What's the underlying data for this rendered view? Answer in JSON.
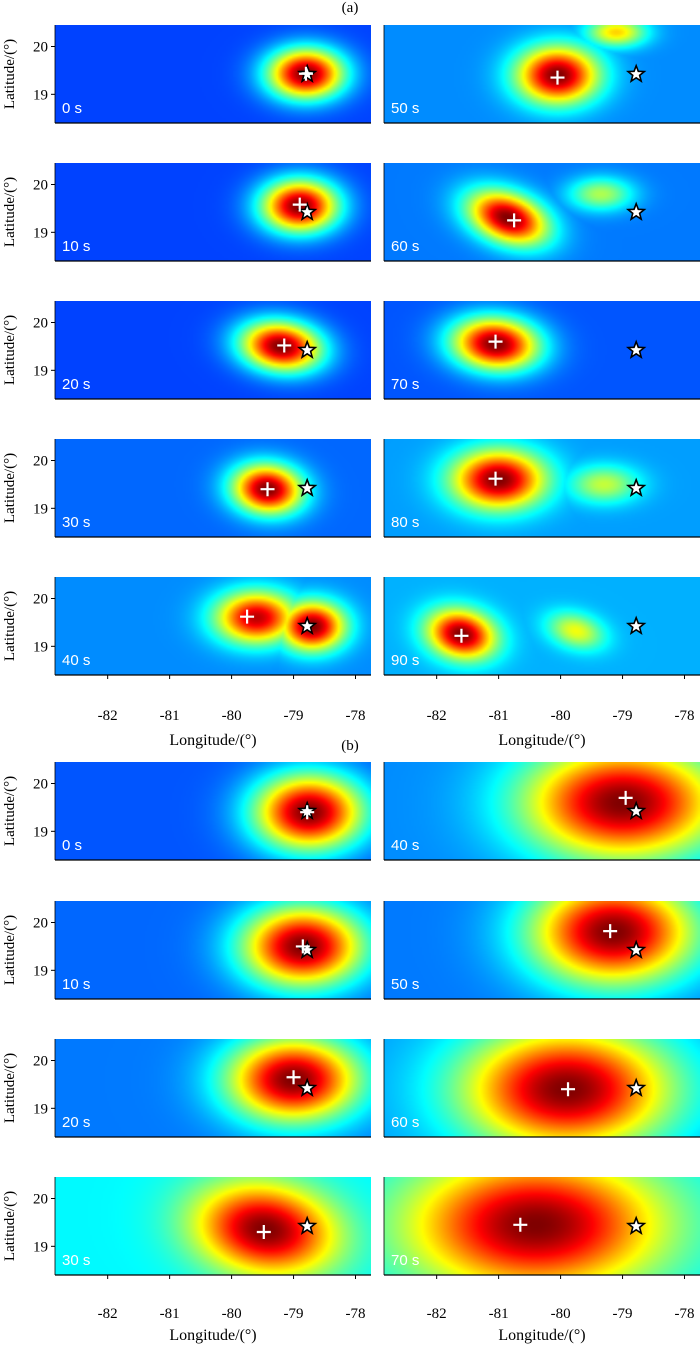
{
  "chart_data": {
    "type": "heatmap",
    "colormap": "jet",
    "xlabel": "Longitude/(°)",
    "ylabel": "Latitude/(°)",
    "xlim": [
      -82.85,
      -77.75
    ],
    "ylim": [
      18.4,
      20.45
    ],
    "xticks": [
      -82,
      -81,
      -80,
      -79,
      -78
    ],
    "yticks": [
      19,
      20
    ],
    "epicenter_star": {
      "lon": -78.78,
      "lat": 19.42
    },
    "panels": [
      {
        "label": "(a)",
        "rows": 5,
        "columns": [
          [
            {
              "time": "0 s",
              "peak": {
                "lon": -78.8,
                "lat": 19.43
              },
              "blobs": [
                {
                  "lon": -78.8,
                  "lat": 19.43,
                  "rx": 0.7,
                  "ry": 0.6,
                  "rot": 0,
                  "amp": 1.0
                }
              ],
              "bg": 0.1
            },
            {
              "time": "10 s",
              "peak": {
                "lon": -78.9,
                "lat": 19.58
              },
              "blobs": [
                {
                  "lon": -78.9,
                  "lat": 19.55,
                  "rx": 0.7,
                  "ry": 0.62,
                  "rot": 0,
                  "amp": 1.0
                }
              ],
              "bg": 0.1
            },
            {
              "time": "20 s",
              "peak": {
                "lon": -79.15,
                "lat": 19.52
              },
              "blobs": [
                {
                  "lon": -79.2,
                  "lat": 19.5,
                  "rx": 0.75,
                  "ry": 0.58,
                  "rot": -15,
                  "amp": 1.0
                }
              ],
              "bg": 0.1
            },
            {
              "time": "30 s",
              "peak": {
                "lon": -79.42,
                "lat": 19.4
              },
              "blobs": [
                {
                  "lon": -79.42,
                  "lat": 19.4,
                  "rx": 0.65,
                  "ry": 0.58,
                  "rot": -20,
                  "amp": 1.0
                }
              ],
              "bg": 0.14
            },
            {
              "time": "40 s",
              "peak": {
                "lon": -79.75,
                "lat": 19.62
              },
              "blobs": [
                {
                  "lon": -79.6,
                  "lat": 19.6,
                  "rx": 0.75,
                  "ry": 0.62,
                  "rot": 0,
                  "amp": 0.92
                },
                {
                  "lon": -78.7,
                  "lat": 19.42,
                  "rx": 0.6,
                  "ry": 0.58,
                  "rot": 0,
                  "amp": 1.0
                }
              ],
              "bg": 0.18
            }
          ],
          [
            {
              "time": "50 s",
              "peak": {
                "lon": -80.05,
                "lat": 19.35
              },
              "blobs": [
                {
                  "lon": -80.05,
                  "lat": 19.4,
                  "rx": 0.75,
                  "ry": 0.68,
                  "rot": 0,
                  "amp": 1.0
                },
                {
                  "lon": -79.1,
                  "lat": 20.3,
                  "rx": 0.55,
                  "ry": 0.35,
                  "rot": 0,
                  "amp": 0.55
                }
              ],
              "bg": 0.18
            },
            {
              "time": "60 s",
              "peak": {
                "lon": -80.75,
                "lat": 19.25
              },
              "blobs": [
                {
                  "lon": -80.85,
                  "lat": 19.3,
                  "rx": 0.8,
                  "ry": 0.55,
                  "rot": -35,
                  "amp": 1.0
                },
                {
                  "lon": -79.35,
                  "lat": 19.8,
                  "rx": 0.6,
                  "ry": 0.4,
                  "rot": 0,
                  "amp": 0.4
                }
              ],
              "bg": 0.16
            },
            {
              "time": "70 s",
              "peak": {
                "lon": -81.05,
                "lat": 19.6
              },
              "blobs": [
                {
                  "lon": -81.05,
                  "lat": 19.55,
                  "rx": 0.8,
                  "ry": 0.62,
                  "rot": -10,
                  "amp": 1.0
                }
              ],
              "bg": 0.12
            },
            {
              "time": "80 s",
              "peak": {
                "lon": -81.05,
                "lat": 19.62
              },
              "blobs": [
                {
                  "lon": -81.0,
                  "lat": 19.6,
                  "rx": 0.85,
                  "ry": 0.7,
                  "rot": 0,
                  "amp": 1.0
                },
                {
                  "lon": -79.3,
                  "lat": 19.5,
                  "rx": 0.65,
                  "ry": 0.45,
                  "rot": 0,
                  "amp": 0.4
                }
              ],
              "bg": 0.2
            },
            {
              "time": "90 s",
              "peak": {
                "lon": -81.6,
                "lat": 19.22
              },
              "blobs": [
                {
                  "lon": -81.6,
                  "lat": 19.25,
                  "rx": 0.65,
                  "ry": 0.55,
                  "rot": -35,
                  "amp": 1.0
                },
                {
                  "lon": -79.75,
                  "lat": 19.32,
                  "rx": 0.55,
                  "ry": 0.4,
                  "rot": -30,
                  "amp": 0.45
                }
              ],
              "bg": 0.22
            }
          ]
        ]
      },
      {
        "label": "(b)",
        "rows": 4,
        "columns": [
          [
            {
              "time": "0 s",
              "peak": {
                "lon": -78.78,
                "lat": 19.4
              },
              "blobs": [
                {
                  "lon": -78.75,
                  "lat": 19.4,
                  "rx": 1.0,
                  "ry": 0.9,
                  "rot": 0,
                  "amp": 1.0
                }
              ],
              "bg": 0.12
            },
            {
              "time": "10 s",
              "peak": {
                "lon": -78.85,
                "lat": 19.5
              },
              "blobs": [
                {
                  "lon": -78.85,
                  "lat": 19.5,
                  "rx": 1.1,
                  "ry": 0.95,
                  "rot": 0,
                  "amp": 1.0
                }
              ],
              "bg": 0.14
            },
            {
              "time": "20 s",
              "peak": {
                "lon": -79.0,
                "lat": 19.65
              },
              "blobs": [
                {
                  "lon": -79.0,
                  "lat": 19.6,
                  "rx": 1.2,
                  "ry": 1.0,
                  "rot": 0,
                  "amp": 1.0
                }
              ],
              "bg": 0.16
            },
            {
              "time": "30 s",
              "peak": {
                "lon": -79.48,
                "lat": 19.3
              },
              "blobs": [
                {
                  "lon": -79.45,
                  "lat": 19.35,
                  "rx": 1.3,
                  "ry": 1.05,
                  "rot": -20,
                  "amp": 1.0
                }
              ],
              "bg": 0.3
            }
          ],
          [
            {
              "time": "40 s",
              "peak": {
                "lon": -78.95,
                "lat": 19.7
              },
              "blobs": [
                {
                  "lon": -79.0,
                  "lat": 19.6,
                  "rx": 1.8,
                  "ry": 1.35,
                  "rot": 0,
                  "amp": 1.0
                }
              ],
              "bg": 0.18
            },
            {
              "time": "50 s",
              "peak": {
                "lon": -79.2,
                "lat": 19.82
              },
              "blobs": [
                {
                  "lon": -79.15,
                  "lat": 19.8,
                  "rx": 1.5,
                  "ry": 1.25,
                  "rot": 0,
                  "amp": 1.0
                }
              ],
              "bg": 0.16
            },
            {
              "time": "60 s",
              "peak": {
                "lon": -79.88,
                "lat": 19.4
              },
              "blobs": [
                {
                  "lon": -79.9,
                  "lat": 19.4,
                  "rx": 1.9,
                  "ry": 1.45,
                  "rot": 0,
                  "amp": 1.0
                }
              ],
              "bg": 0.2
            },
            {
              "time": "70 s",
              "peak": {
                "lon": -80.65,
                "lat": 19.45
              },
              "blobs": [
                {
                  "lon": -80.4,
                  "lat": 19.45,
                  "rx": 2.3,
                  "ry": 1.6,
                  "rot": 0,
                  "amp": 1.0
                }
              ],
              "bg": 0.28
            }
          ]
        ]
      }
    ]
  }
}
